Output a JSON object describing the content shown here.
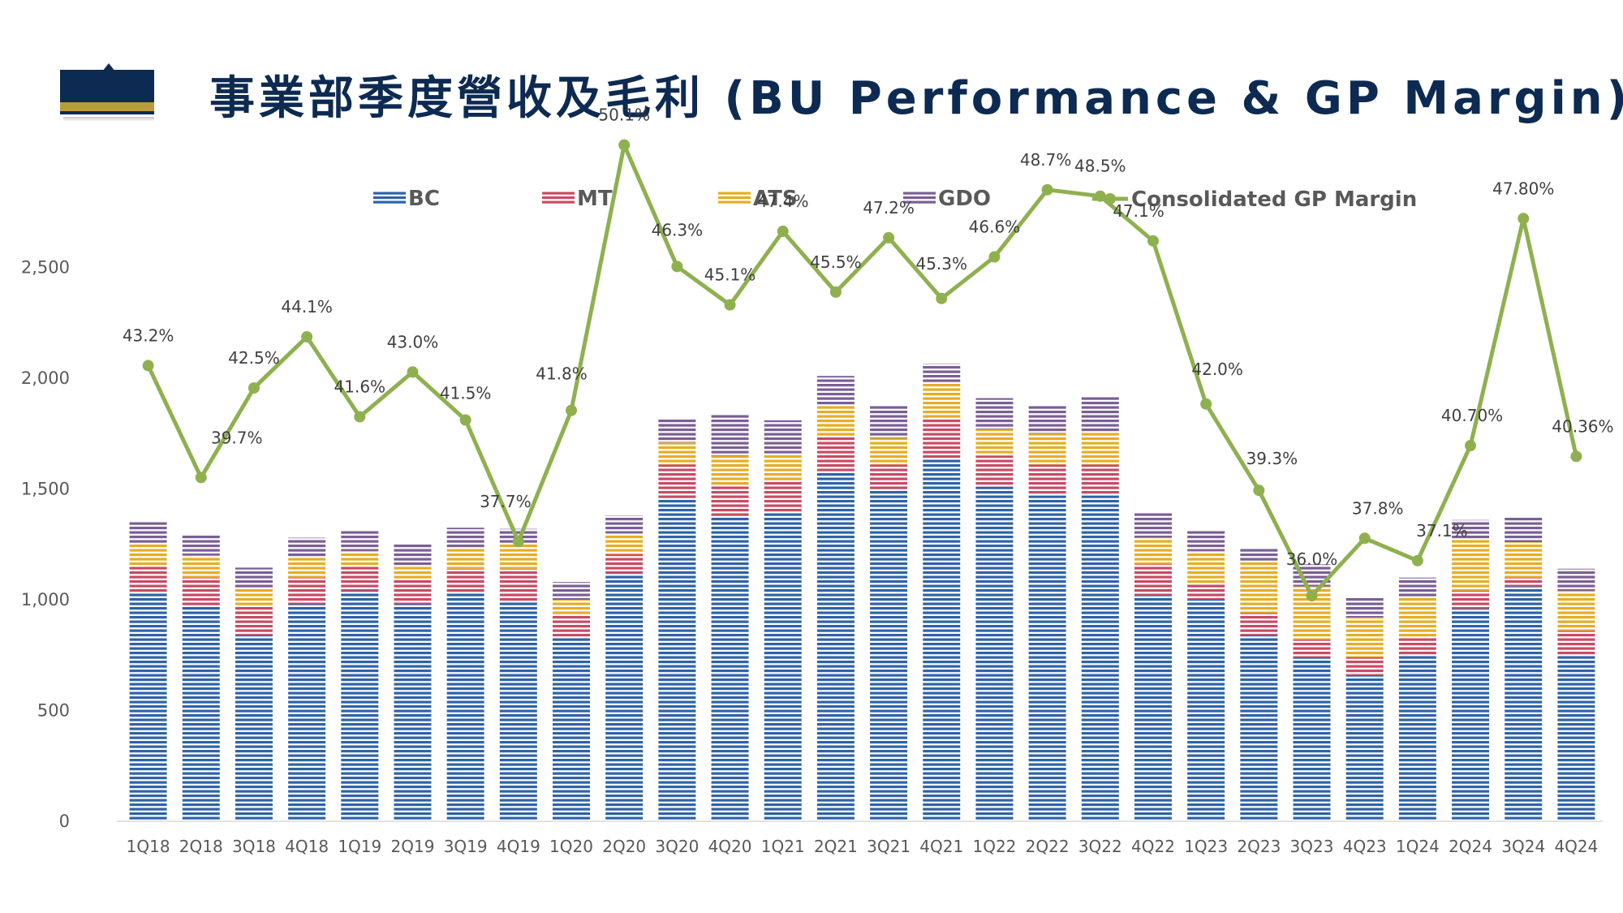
{
  "title": "事業部季度營收及毛利 (BU Performance & GP Margin)",
  "colors": {
    "BC": "#2e63a8",
    "MT": "#c84b64",
    "ATS": "#e6ad24",
    "GDO": "#7a5f96",
    "margin": "#8fb04f",
    "title": "#0d2a52"
  },
  "chart_data": {
    "type": "bar",
    "stacked": true,
    "categories": [
      "1Q18",
      "2Q18",
      "3Q18",
      "4Q18",
      "1Q19",
      "2Q19",
      "3Q19",
      "4Q19",
      "1Q20",
      "2Q20",
      "3Q20",
      "4Q20",
      "1Q21",
      "2Q21",
      "3Q21",
      "4Q21",
      "1Q22",
      "2Q22",
      "3Q22",
      "4Q22",
      "1Q23",
      "2Q23",
      "3Q23",
      "4Q23",
      "1Q24",
      "2Q24",
      "3Q24",
      "4Q24"
    ],
    "series": [
      {
        "name": "BC",
        "values": [
          1030,
          970,
          840,
          980,
          1040,
          980,
          1030,
          990,
          830,
          1120,
          1460,
          1370,
          1390,
          1580,
          1500,
          1640,
          1510,
          1470,
          1470,
          1020,
          1000,
          840,
          740,
          660,
          750,
          960,
          1060,
          750
        ]
      },
      {
        "name": "MT",
        "values": [
          120,
          130,
          130,
          120,
          110,
          115,
          110,
          150,
          100,
          85,
          150,
          150,
          150,
          160,
          110,
          180,
          140,
          140,
          140,
          140,
          70,
          100,
          80,
          80,
          80,
          80,
          40,
          110
        ]
      },
      {
        "name": "ATS",
        "values": [
          100,
          100,
          80,
          90,
          70,
          60,
          90,
          110,
          70,
          95,
          100,
          130,
          120,
          140,
          120,
          160,
          120,
          140,
          150,
          120,
          150,
          230,
          240,
          180,
          180,
          230,
          160,
          180
        ]
      },
      {
        "name": "GDO",
        "values": [
          100,
          90,
          95,
          90,
          95,
          95,
          95,
          70,
          80,
          80,
          110,
          190,
          150,
          130,
          150,
          85,
          140,
          130,
          160,
          115,
          90,
          65,
          100,
          90,
          90,
          90,
          110,
          100
        ]
      }
    ],
    "line": {
      "name": "Consolidated GP Margin",
      "values": [
        43.2,
        39.7,
        42.5,
        44.1,
        41.6,
        43.0,
        41.5,
        37.7,
        41.8,
        50.1,
        46.3,
        45.1,
        47.4,
        45.5,
        47.2,
        45.3,
        46.6,
        48.7,
        48.5,
        47.1,
        42.0,
        39.3,
        36.0,
        37.8,
        37.1,
        40.7,
        47.8,
        40.36
      ],
      "labels": [
        "43.2%",
        "39.7%",
        "42.5%",
        "44.1%",
        "41.6%",
        "43.0%",
        "41.5%",
        "37.7%",
        "41.8%",
        "50.1%",
        "46.3%",
        "45.1%",
        "47.4%",
        "45.5%",
        "47.2%",
        "45.3%",
        "46.6%",
        "48.7%",
        "48.5%",
        "47.1%",
        "42.0%",
        "39.3%",
        "36.0%",
        "37.8%",
        "37.1%",
        "40.70%",
        "47.80%",
        "40.36%"
      ]
    },
    "y_ticks": [
      "0",
      "500",
      "1,000",
      "1,500",
      "2,000",
      "2,500"
    ],
    "ylim": [
      0,
      2500
    ],
    "legend": [
      "BC",
      "MT",
      "ATS",
      "GDO",
      "Consolidated GP Margin"
    ],
    "legend_position": "top",
    "grid": false
  }
}
